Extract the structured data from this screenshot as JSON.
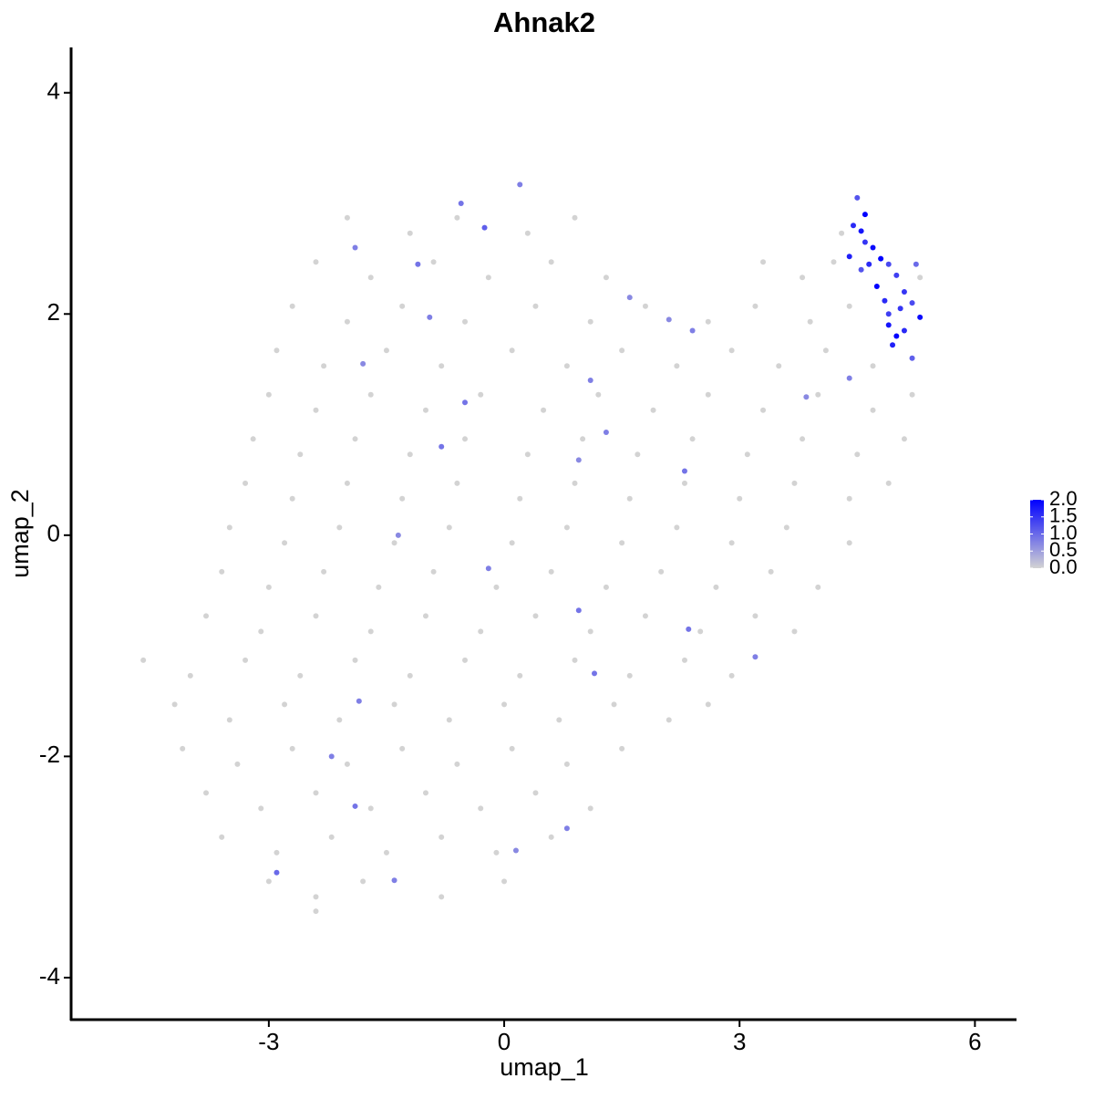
{
  "chart_data": {
    "type": "scatter",
    "title": "Ahnak2",
    "xlabel": "umap_1",
    "ylabel": "umap_2",
    "xlim": [
      -5.52,
      6.53
    ],
    "ylim": [
      -4.38,
      4.41
    ],
    "xticks": [
      -3,
      0,
      3,
      6
    ],
    "yticks": [
      -4,
      -2,
      0,
      2,
      4
    ],
    "color_low": "#d3d3d3",
    "color_high": "#0000ff",
    "clim": [
      0,
      2
    ],
    "cticks": [
      {
        "value": 0,
        "label": "0.0"
      },
      {
        "value": 0.5,
        "label": "0.5"
      },
      {
        "value": 1,
        "label": "1.0"
      },
      {
        "value": 1.5,
        "label": "1.5"
      },
      {
        "value": 2,
        "label": "2.0"
      }
    ],
    "x": [
      -2.0,
      -1.2,
      -0.6,
      0.3,
      0.9,
      4.3,
      -2.4,
      -1.7,
      -0.9,
      -0.2,
      0.6,
      1.3,
      3.3,
      3.8,
      4.2,
      5.3,
      -2.7,
      -2.0,
      -1.3,
      -0.5,
      0.4,
      1.1,
      1.8,
      2.6,
      3.2,
      3.9,
      4.4,
      -2.9,
      -2.3,
      -1.5,
      -0.8,
      0.1,
      0.8,
      1.5,
      2.2,
      2.9,
      3.5,
      4.1,
      4.7,
      -3.0,
      -2.4,
      -1.7,
      -1.0,
      -0.3,
      0.5,
      1.2,
      1.9,
      2.6,
      3.3,
      4.0,
      4.7,
      5.2,
      -3.2,
      -2.6,
      -1.9,
      -1.2,
      -0.5,
      0.3,
      1.0,
      1.7,
      2.4,
      3.1,
      3.8,
      4.5,
      5.1,
      -3.3,
      -2.7,
      -2.0,
      -1.3,
      -0.6,
      0.2,
      0.9,
      1.6,
      2.3,
      3.0,
      3.7,
      4.4,
      4.9,
      -3.5,
      -2.8,
      -2.1,
      -1.4,
      -0.7,
      0.1,
      0.8,
      1.5,
      2.2,
      2.9,
      3.6,
      4.4,
      -3.6,
      -3.0,
      -2.3,
      -1.6,
      -0.9,
      -0.1,
      0.6,
      1.3,
      2.0,
      2.7,
      3.4,
      4.0,
      -3.8,
      -3.1,
      -2.4,
      -1.7,
      -1.0,
      -0.3,
      0.4,
      1.1,
      1.8,
      2.5,
      3.2,
      3.7,
      -4.6,
      -4.0,
      -3.3,
      -2.6,
      -1.9,
      -1.2,
      -0.5,
      0.2,
      0.9,
      1.6,
      2.3,
      2.9,
      -4.2,
      -3.5,
      -2.8,
      -2.1,
      -1.4,
      -0.7,
      0.0,
      0.7,
      1.4,
      2.1,
      2.6,
      -4.1,
      -3.4,
      -2.7,
      -2.0,
      -1.3,
      -0.6,
      0.1,
      0.8,
      1.5,
      -3.8,
      -3.1,
      -2.4,
      -1.7,
      -1.0,
      -0.3,
      0.4,
      1.1,
      -3.6,
      -2.9,
      -2.2,
      -1.5,
      -0.8,
      -0.1,
      0.6,
      -3.0,
      -2.4,
      -1.8,
      -0.8,
      0.0,
      -2.4,
      -0.55,
      -0.25,
      0.2,
      -1.9,
      -1.1,
      -0.95,
      1.6,
      2.1,
      2.4,
      -1.8,
      1.1,
      -0.5,
      1.3,
      -0.8,
      0.95,
      2.3,
      -1.35,
      -0.2,
      0.95,
      2.35,
      1.15,
      -1.85,
      -2.2,
      -1.9,
      -2.9,
      -1.4,
      0.8,
      0.15,
      3.2,
      3.85,
      4.4,
      4.5,
      4.6,
      4.45,
      4.55,
      4.7,
      4.6,
      4.8,
      4.4,
      4.9,
      5.0,
      4.75,
      4.85,
      5.1,
      5.2,
      5.3,
      4.9,
      5.0,
      4.95,
      5.1,
      4.9,
      5.25,
      5.05,
      4.65,
      4.55,
      5.2
    ],
    "y": [
      2.87,
      2.73,
      2.87,
      2.73,
      2.87,
      2.73,
      2.47,
      2.33,
      2.47,
      2.33,
      2.47,
      2.33,
      2.47,
      2.33,
      2.47,
      2.33,
      2.07,
      1.93,
      2.07,
      1.93,
      2.07,
      1.93,
      2.07,
      1.93,
      2.07,
      1.93,
      2.07,
      1.67,
      1.53,
      1.67,
      1.53,
      1.67,
      1.53,
      1.67,
      1.53,
      1.67,
      1.53,
      1.67,
      1.53,
      1.27,
      1.13,
      1.27,
      1.13,
      1.27,
      1.13,
      1.27,
      1.13,
      1.27,
      1.13,
      1.27,
      1.13,
      1.27,
      0.87,
      0.73,
      0.87,
      0.73,
      0.87,
      0.73,
      0.87,
      0.73,
      0.87,
      0.73,
      0.87,
      0.73,
      0.87,
      0.47,
      0.33,
      0.47,
      0.33,
      0.47,
      0.33,
      0.47,
      0.33,
      0.47,
      0.33,
      0.47,
      0.33,
      0.47,
      0.07,
      -0.07,
      0.07,
      -0.07,
      0.07,
      -0.07,
      0.07,
      -0.07,
      0.07,
      -0.07,
      0.07,
      -0.07,
      -0.33,
      -0.47,
      -0.33,
      -0.47,
      -0.33,
      -0.47,
      -0.33,
      -0.47,
      -0.33,
      -0.47,
      -0.33,
      -0.47,
      -0.73,
      -0.87,
      -0.73,
      -0.87,
      -0.73,
      -0.87,
      -0.73,
      -0.87,
      -0.73,
      -0.87,
      -0.73,
      -0.87,
      -1.13,
      -1.27,
      -1.13,
      -1.27,
      -1.13,
      -1.27,
      -1.13,
      -1.27,
      -1.13,
      -1.27,
      -1.13,
      -1.27,
      -1.53,
      -1.67,
      -1.53,
      -1.67,
      -1.53,
      -1.67,
      -1.53,
      -1.67,
      -1.53,
      -1.67,
      -1.53,
      -1.93,
      -2.07,
      -1.93,
      -2.07,
      -1.93,
      -2.07,
      -1.93,
      -2.07,
      -1.93,
      -2.33,
      -2.47,
      -2.33,
      -2.47,
      -2.33,
      -2.47,
      -2.33,
      -2.47,
      -2.73,
      -2.87,
      -2.73,
      -2.87,
      -2.73,
      -2.87,
      -2.73,
      -3.13,
      -3.27,
      -3.13,
      -3.27,
      -3.13,
      -3.4,
      3.0,
      2.78,
      3.17,
      2.6,
      2.45,
      1.97,
      2.15,
      1.95,
      1.85,
      1.55,
      1.4,
      1.2,
      0.93,
      0.8,
      0.68,
      0.58,
      0.0,
      -0.3,
      -0.68,
      -0.85,
      -1.25,
      -1.5,
      -2.0,
      -2.45,
      -3.05,
      -3.12,
      -2.65,
      -2.85,
      -1.1,
      1.25,
      1.42,
      3.05,
      2.9,
      2.8,
      2.75,
      2.6,
      2.65,
      2.5,
      2.52,
      2.45,
      2.35,
      2.25,
      2.12,
      2.2,
      2.1,
      1.97,
      1.9,
      1.8,
      1.72,
      1.85,
      2.0,
      2.45,
      2.05,
      2.45,
      2.4,
      1.6
    ],
    "values": [
      0,
      0,
      0,
      0,
      0,
      0,
      0,
      0,
      0,
      0,
      0,
      0,
      0,
      0,
      0,
      0,
      0,
      0,
      0,
      0,
      0,
      0,
      0,
      0,
      0,
      0,
      0,
      0,
      0,
      0,
      0,
      0,
      0,
      0,
      0,
      0,
      0,
      0,
      0,
      0,
      0,
      0,
      0,
      0,
      0,
      0,
      0,
      0,
      0,
      0,
      0,
      0,
      0,
      0,
      0,
      0,
      0,
      0,
      0,
      0,
      0,
      0,
      0,
      0,
      0,
      0,
      0,
      0,
      0,
      0,
      0,
      0,
      0,
      0,
      0,
      0,
      0,
      0,
      0,
      0,
      0,
      0,
      0,
      0,
      0,
      0,
      0,
      0,
      0,
      0,
      0,
      0,
      0,
      0,
      0,
      0,
      0,
      0,
      0,
      0,
      0,
      0,
      0,
      0,
      0,
      0,
      0,
      0,
      0,
      0,
      0,
      0,
      0,
      0,
      0,
      0,
      0,
      0,
      0,
      0,
      0,
      0,
      0,
      0,
      0,
      0,
      0,
      0,
      0,
      0,
      0,
      0,
      0,
      0,
      0,
      0,
      0,
      0,
      0,
      0,
      0,
      0,
      0,
      0,
      0,
      0,
      0,
      0,
      0,
      0,
      0,
      0,
      0,
      0,
      0,
      0,
      0,
      0,
      0,
      0,
      0,
      0,
      0,
      0,
      0,
      0,
      0,
      0.9,
      1.1,
      0.8,
      0.8,
      0.9,
      0.8,
      0.7,
      0.7,
      0.8,
      0.7,
      0.8,
      0.9,
      0.8,
      0.9,
      0.7,
      0.9,
      0.7,
      0.8,
      0.9,
      0.9,
      0.9,
      0.8,
      0.8,
      0.9,
      1.0,
      0.8,
      0.8,
      0.7,
      0.8,
      0.7,
      0.8,
      1.2,
      2.0,
      1.6,
      1.8,
      1.9,
      1.5,
      2.0,
      1.7,
      1.3,
      1.4,
      2.0,
      1.6,
      1.5,
      1.3,
      1.9,
      1.8,
      2.0,
      1.7,
      1.6,
      1.4,
      1.0,
      1.5,
      1.6,
      1.2,
      1.1
    ]
  }
}
